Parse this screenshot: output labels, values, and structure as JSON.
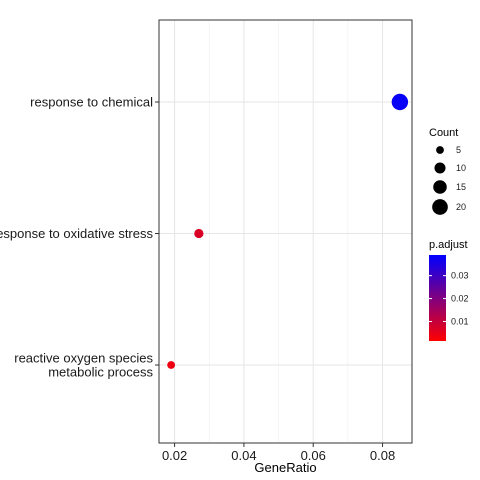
{
  "chart_data": {
    "type": "scatter",
    "xlabel": "GeneRatio",
    "ylabel": "",
    "xlim": [
      0.0155,
      0.0885
    ],
    "x_ticks": [
      0.02,
      0.04,
      0.06,
      0.08
    ],
    "x_tick_labels": [
      "0.02",
      "0.04",
      "0.06",
      "0.08"
    ],
    "categories": [
      [
        "response to chemical"
      ],
      [
        "response to oxidative stress"
      ],
      [
        "reactive oxygen species",
        "metabolic process"
      ]
    ],
    "points": [
      {
        "x": 0.085,
        "count": 22,
        "p_adjust": 0.038
      },
      {
        "x": 0.027,
        "count": 7,
        "p_adjust": 0.007
      },
      {
        "x": 0.019,
        "count": 5,
        "p_adjust": 0.004
      }
    ],
    "grid": true,
    "legend_position": "right",
    "size_legend": {
      "title": "Count",
      "values": [
        5,
        10,
        15,
        20
      ],
      "labels": [
        "5",
        "10",
        "15",
        "20"
      ]
    },
    "color_legend": {
      "title": "p.adjust",
      "range": [
        0.0015,
        0.039
      ],
      "ticks": [
        0.01,
        0.02,
        0.03
      ],
      "tick_labels": [
        "0.01",
        "0.02",
        "0.03"
      ],
      "low_color": "#ff0000",
      "high_color": "#0000ff"
    }
  }
}
